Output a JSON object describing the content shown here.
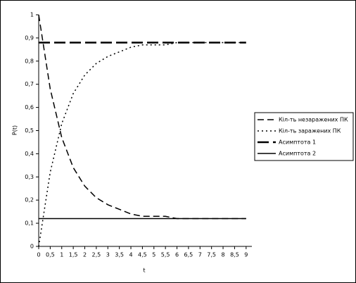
{
  "chart_data": {
    "type": "line",
    "x_label": "t",
    "y_label": "P(t)",
    "x": [
      0,
      0.5,
      1,
      1.5,
      2,
      2.5,
      3,
      3.5,
      4,
      4.5,
      5,
      5.5,
      6,
      6.5,
      7,
      7.5,
      8,
      8.5,
      9
    ],
    "series": [
      {
        "name": "Кіл-ть незаражених ПК",
        "color": "#000000",
        "dash": "dash",
        "values": [
          1,
          0.68,
          0.47,
          0.34,
          0.26,
          0.21,
          0.18,
          0.16,
          0.14,
          0.13,
          0.13,
          0.13,
          0.12,
          0.12,
          0.12,
          0.12,
          0.12,
          0.12,
          0.12
        ]
      },
      {
        "name": "Кіл-ть заражених ПК",
        "color": "#000000",
        "dash": "dot",
        "values": [
          0,
          0.32,
          0.53,
          0.66,
          0.74,
          0.79,
          0.82,
          0.84,
          0.86,
          0.87,
          0.87,
          0.87,
          0.88,
          0.88,
          0.88,
          0.88,
          0.88,
          0.88,
          0.88
        ]
      },
      {
        "name": "Асимптота 1",
        "color": "#000000",
        "dash": "longdash",
        "values": [
          0.88,
          0.88,
          0.88,
          0.88,
          0.88,
          0.88,
          0.88,
          0.88,
          0.88,
          0.88,
          0.88,
          0.88,
          0.88,
          0.88,
          0.88,
          0.88,
          0.88,
          0.88,
          0.88
        ]
      },
      {
        "name": "Асимптота 2",
        "color": "#000000",
        "dash": "solid",
        "values": [
          0.12,
          0.12,
          0.12,
          0.12,
          0.12,
          0.12,
          0.12,
          0.12,
          0.12,
          0.12,
          0.12,
          0.12,
          0.12,
          0.12,
          0.12,
          0.12,
          0.12,
          0.12,
          0.12
        ]
      }
    ],
    "xlim": [
      0,
      9.25
    ],
    "xticks": [
      0,
      {
        "value": 0.5,
        "label": "0,5"
      },
      1,
      {
        "value": 1.5,
        "label": "1,5"
      },
      2,
      {
        "value": 2.5,
        "label": "2,5"
      },
      3,
      {
        "value": 3.5,
        "label": "3,5"
      },
      4,
      {
        "value": 4.5,
        "label": "4,5"
      },
      5,
      {
        "value": 5.5,
        "label": "5,5"
      },
      6,
      {
        "value": 6.5,
        "label": "6,5"
      },
      7,
      {
        "value": 7.5,
        "label": "7,5"
      },
      8,
      {
        "value": 8.5,
        "label": "8,5"
      },
      9
    ],
    "ylim": [
      0,
      1
    ],
    "yticks": [
      0,
      {
        "value": 0.1,
        "label": "0,1"
      },
      {
        "value": 0.2,
        "label": "0,2"
      },
      {
        "value": 0.3,
        "label": "0,3"
      },
      {
        "value": 0.4,
        "label": "0,4"
      },
      {
        "value": 0.5,
        "label": "0,5"
      },
      {
        "value": 0.6,
        "label": "0,6"
      },
      {
        "value": 0.7,
        "label": "0,7"
      },
      {
        "value": 0.8,
        "label": "0,8"
      },
      {
        "value": 0.9,
        "label": "0,9"
      },
      1
    ],
    "grid": false,
    "legend": "right"
  }
}
